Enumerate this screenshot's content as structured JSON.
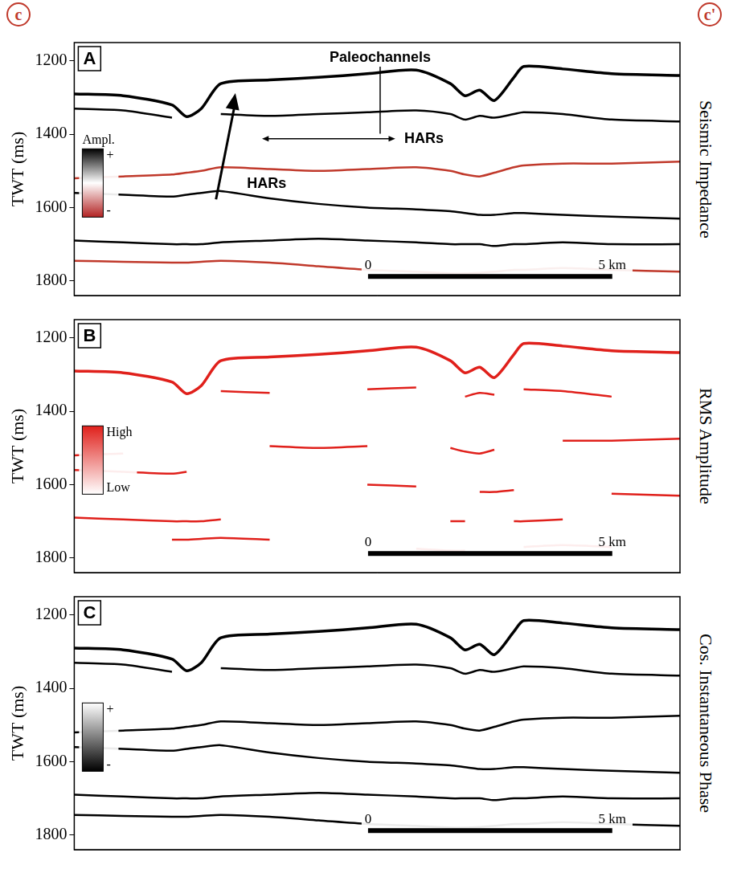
{
  "header": {
    "left": "c",
    "right": "c'"
  },
  "chart_data": [
    {
      "type": "line",
      "panel_label": "A",
      "title": "Seismic Impedance",
      "y_label": "TWT (ms)",
      "xlim": [
        0,
        12.4
      ],
      "ylim": [
        1150,
        1840
      ],
      "yticks": [
        1200,
        1400,
        1600,
        1800
      ],
      "grid": false,
      "tick_labels": "y",
      "x": [
        0,
        1,
        2,
        2.3,
        2.6,
        3,
        4,
        5,
        6,
        7,
        7.7,
        8,
        8.3,
        8.6,
        9,
        9.2,
        10,
        11,
        12.4
      ],
      "series": [
        {
          "color": "#000000",
          "values": [
            1290,
            1295,
            1320,
            1352,
            1330,
            1262,
            1252,
            1245,
            1235,
            1225,
            1262,
            1295,
            1280,
            1308,
            1245,
            1215,
            1222,
            1235,
            1240
          ]
        },
        {
          "color": "#000000",
          "values": [
            1330,
            1335,
            1355,
            null,
            null,
            1345,
            1350,
            1345,
            1340,
            1335,
            1345,
            1360,
            1350,
            1355,
            1345,
            1340,
            1345,
            1360,
            1365
          ]
        },
        {
          "color": "#c0392b",
          "values": [
            1520,
            1515,
            1510,
            1505,
            1500,
            1490,
            1495,
            1500,
            1495,
            1490,
            1500,
            1510,
            1515,
            1505,
            1490,
            1485,
            1480,
            1480,
            1475
          ]
        },
        {
          "color": "#000000",
          "values": [
            1560,
            1565,
            1570,
            1565,
            1560,
            1555,
            1575,
            1590,
            1600,
            1605,
            1610,
            1615,
            1620,
            1620,
            1615,
            1615,
            1620,
            1625,
            1630
          ]
        },
        {
          "color": "#000000",
          "values": [
            1690,
            1695,
            1700,
            1700,
            1700,
            1695,
            1690,
            1685,
            1690,
            1695,
            1700,
            1700,
            1700,
            1705,
            1700,
            1700,
            1695,
            1700,
            1700
          ]
        },
        {
          "color": "#c0392b",
          "values": [
            1745,
            1748,
            1750,
            1750,
            1748,
            1745,
            1750,
            1760,
            1770,
            1775,
            1780,
            1780,
            1778,
            1775,
            1770,
            1770,
            1765,
            1770,
            1775
          ]
        }
      ],
      "color_bar": {
        "title": "Ampl.",
        "top_label": "+",
        "bottom_label": "-",
        "colors": [
          "#000000",
          "#ffffff",
          "#b22222"
        ]
      },
      "scale_bar": {
        "values": [
          0,
          5
        ],
        "labels": [
          "0",
          "5 km"
        ]
      },
      "annotations": [
        {
          "text": "Paleochannels"
        },
        {
          "text": "HARs"
        },
        {
          "text": "HARs"
        }
      ]
    },
    {
      "type": "line",
      "panel_label": "B",
      "title": "RMS Amplitude",
      "y_label": "TWT (ms)",
      "xlim": [
        0,
        12.4
      ],
      "ylim": [
        1150,
        1840
      ],
      "yticks": [
        1200,
        1400,
        1600,
        1800
      ],
      "grid": false,
      "tick_labels": "y",
      "x": [
        0,
        1,
        2,
        2.3,
        2.6,
        3,
        4,
        5,
        6,
        7,
        7.7,
        8,
        8.3,
        8.6,
        9,
        9.2,
        10,
        11,
        12.4
      ],
      "series": [
        {
          "color": "#e0201b",
          "values": [
            1290,
            1295,
            1320,
            1352,
            1330,
            1262,
            1252,
            1245,
            1235,
            1225,
            1262,
            1295,
            1280,
            1308,
            1245,
            1215,
            1222,
            1235,
            1240
          ]
        },
        {
          "color": "#e0201b",
          "values": [
            null,
            null,
            null,
            null,
            null,
            1345,
            1350,
            null,
            1340,
            1335,
            null,
            1360,
            1350,
            1355,
            null,
            1340,
            1345,
            1360,
            null
          ]
        },
        {
          "color": "#e0201b",
          "values": [
            1520,
            1515,
            null,
            null,
            null,
            null,
            1495,
            1500,
            1495,
            null,
            1500,
            1510,
            1515,
            1505,
            null,
            null,
            1480,
            1480,
            1475
          ]
        },
        {
          "color": "#e0201b",
          "values": [
            1560,
            1565,
            1570,
            1565,
            null,
            null,
            null,
            null,
            1600,
            1605,
            null,
            null,
            1620,
            1620,
            1615,
            null,
            null,
            1625,
            1630
          ]
        },
        {
          "color": "#e0201b",
          "values": [
            1690,
            1695,
            1700,
            1700,
            1700,
            1695,
            null,
            null,
            null,
            null,
            1700,
            1700,
            null,
            null,
            1700,
            1700,
            1695,
            null,
            null
          ]
        },
        {
          "color": "#e0201b",
          "values": [
            null,
            null,
            1750,
            1750,
            1748,
            1745,
            1750,
            null,
            null,
            1775,
            1780,
            1780,
            null,
            null,
            null,
            1770,
            1765,
            1770,
            null
          ]
        }
      ],
      "color_bar": {
        "title": null,
        "top_label": "High",
        "bottom_label": "Low",
        "colors": [
          "#e0201b",
          "#ffffff"
        ]
      },
      "scale_bar": {
        "values": [
          0,
          5
        ],
        "labels": [
          "0",
          "5 km"
        ]
      }
    },
    {
      "type": "line",
      "panel_label": "C",
      "title": "Cos. Instantaneous Phase",
      "y_label": "TWT (ms)",
      "xlim": [
        0,
        12.4
      ],
      "ylim": [
        1150,
        1840
      ],
      "yticks": [
        1200,
        1400,
        1600,
        1800
      ],
      "grid": false,
      "tick_labels": "y",
      "x": [
        0,
        1,
        2,
        2.3,
        2.6,
        3,
        4,
        5,
        6,
        7,
        7.7,
        8,
        8.3,
        8.6,
        9,
        9.2,
        10,
        11,
        12.4
      ],
      "series": [
        {
          "color": "#000000",
          "values": [
            1290,
            1295,
            1320,
            1352,
            1330,
            1262,
            1252,
            1245,
            1235,
            1225,
            1262,
            1295,
            1280,
            1308,
            1245,
            1215,
            1222,
            1235,
            1240
          ]
        },
        {
          "color": "#000000",
          "values": [
            1330,
            1335,
            1355,
            null,
            null,
            1345,
            1350,
            1345,
            1340,
            1335,
            1345,
            1360,
            1350,
            1355,
            1345,
            1340,
            1345,
            1360,
            1365
          ]
        },
        {
          "color": "#000000",
          "values": [
            1520,
            1515,
            1510,
            1505,
            1500,
            1490,
            1495,
            1500,
            1495,
            1490,
            1500,
            1510,
            1515,
            1505,
            1490,
            1485,
            1480,
            1480,
            1475
          ]
        },
        {
          "color": "#000000",
          "values": [
            1560,
            1565,
            1570,
            1565,
            1560,
            1555,
            1575,
            1590,
            1600,
            1605,
            1610,
            1615,
            1620,
            1620,
            1615,
            1615,
            1620,
            1625,
            1630
          ]
        },
        {
          "color": "#000000",
          "values": [
            1690,
            1695,
            1700,
            1700,
            1700,
            1695,
            1690,
            1685,
            1690,
            1695,
            1700,
            1700,
            1700,
            1705,
            1700,
            1700,
            1695,
            1700,
            1700
          ]
        },
        {
          "color": "#000000",
          "values": [
            1745,
            1748,
            1750,
            1750,
            1748,
            1745,
            1750,
            1760,
            1770,
            1775,
            1780,
            1780,
            1778,
            1775,
            1770,
            1770,
            1765,
            1770,
            1775
          ]
        }
      ],
      "color_bar": {
        "title": null,
        "top_label": "+",
        "bottom_label": "-",
        "colors": [
          "#ffffff",
          "#000000"
        ]
      },
      "scale_bar": {
        "values": [
          0,
          5
        ],
        "labels": [
          "0",
          "5 km"
        ]
      }
    }
  ]
}
